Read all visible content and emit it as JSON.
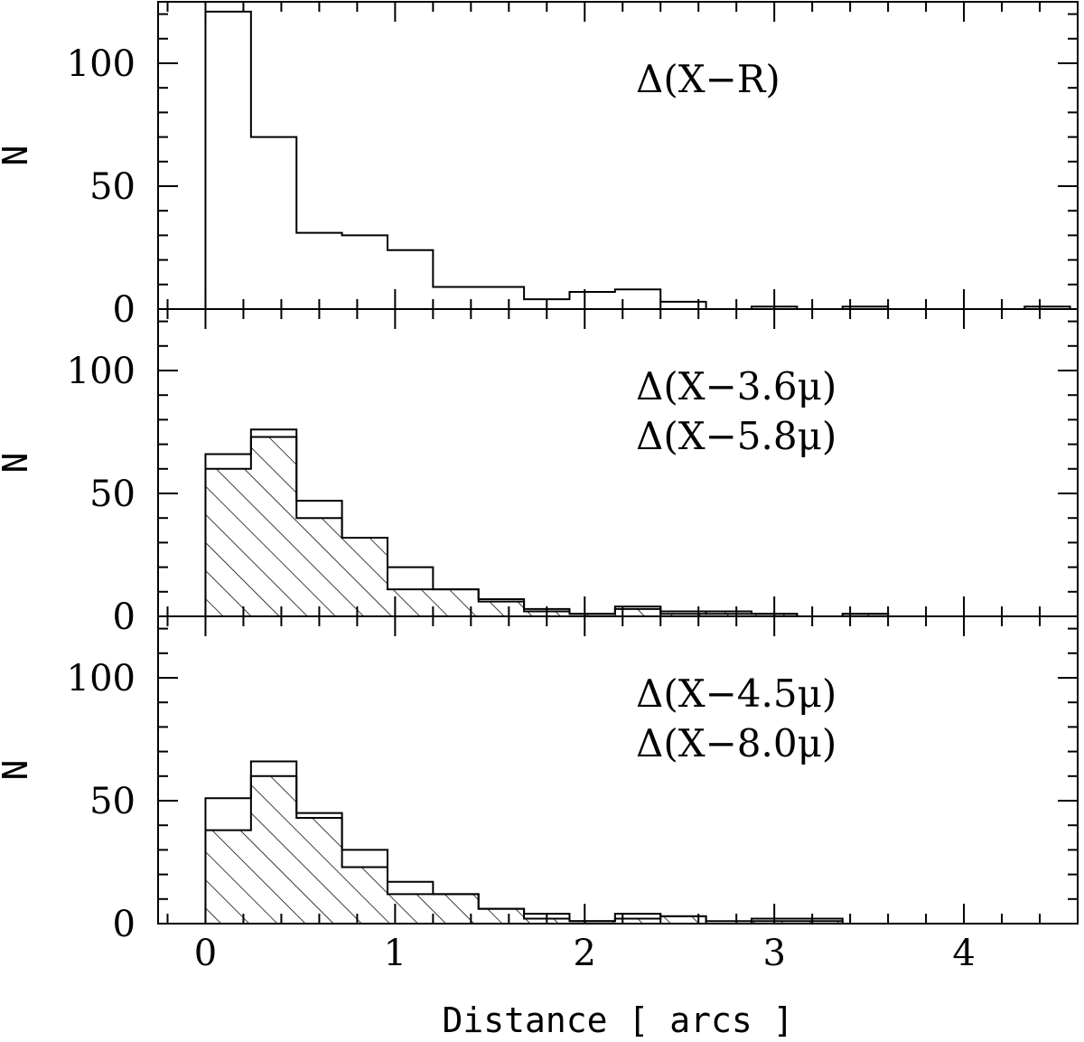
{
  "chart_data": {
    "type": "bar",
    "shared_x": {
      "xlabel": "Distance [ arcs ]",
      "xlim": [
        -0.25,
        4.6
      ],
      "x_ticks_major": [
        0,
        1,
        2,
        3,
        4
      ],
      "x_ticks_minor_step": 0.2,
      "bin_width": 0.24
    },
    "panels": [
      {
        "ylabel": "N",
        "ylim": [
          0,
          125
        ],
        "y_ticks_major": [
          0,
          50,
          100
        ],
        "y_ticks_minor_step": 10,
        "annotations": [
          "Δ(X−R)"
        ],
        "series": [
          {
            "style": "outline",
            "bins": [
              [
                0.0,
                121
              ],
              [
                0.24,
                70
              ],
              [
                0.48,
                31
              ],
              [
                0.72,
                30
              ],
              [
                0.96,
                24
              ],
              [
                1.2,
                9
              ],
              [
                1.44,
                9
              ],
              [
                1.68,
                4
              ],
              [
                1.92,
                7
              ],
              [
                2.16,
                8
              ],
              [
                2.4,
                3
              ],
              [
                2.64,
                0
              ],
              [
                2.88,
                1
              ],
              [
                3.12,
                0
              ],
              [
                3.36,
                1
              ],
              [
                3.6,
                0
              ],
              [
                3.84,
                0
              ],
              [
                4.08,
                0
              ],
              [
                4.32,
                1
              ]
            ]
          }
        ]
      },
      {
        "ylabel": "N",
        "ylim": [
          0,
          125
        ],
        "y_ticks_major": [
          0,
          50,
          100
        ],
        "y_ticks_minor_step": 10,
        "annotations": [
          "Δ(X−3.6μ)",
          "Δ(X−5.8μ)"
        ],
        "series": [
          {
            "style": "outline",
            "bins": [
              [
                0.0,
                66
              ],
              [
                0.24,
                76
              ],
              [
                0.48,
                47
              ],
              [
                0.72,
                32
              ],
              [
                0.96,
                20
              ],
              [
                1.2,
                11
              ],
              [
                1.44,
                7
              ],
              [
                1.68,
                3
              ],
              [
                1.92,
                1
              ],
              [
                2.16,
                4
              ],
              [
                2.4,
                2
              ],
              [
                2.64,
                1
              ],
              [
                2.88,
                1
              ],
              [
                3.12,
                0
              ],
              [
                3.36,
                1
              ]
            ]
          },
          {
            "style": "hatched",
            "bins": [
              [
                0.0,
                60
              ],
              [
                0.24,
                73
              ],
              [
                0.48,
                40
              ],
              [
                0.72,
                32
              ],
              [
                0.96,
                11
              ],
              [
                1.2,
                11
              ],
              [
                1.44,
                6
              ],
              [
                1.68,
                2
              ],
              [
                1.92,
                1
              ],
              [
                2.16,
                3
              ],
              [
                2.4,
                1
              ],
              [
                2.64,
                2
              ],
              [
                2.88,
                1
              ],
              [
                3.12,
                0
              ],
              [
                3.36,
                1
              ]
            ]
          }
        ]
      },
      {
        "ylabel": "N",
        "ylim": [
          0,
          125
        ],
        "y_ticks_major": [
          0,
          50,
          100
        ],
        "y_ticks_minor_step": 10,
        "annotations": [
          "Δ(X−4.5μ)",
          "Δ(X−8.0μ)"
        ],
        "series": [
          {
            "style": "outline",
            "bins": [
              [
                0.0,
                51
              ],
              [
                0.24,
                66
              ],
              [
                0.48,
                45
              ],
              [
                0.72,
                30
              ],
              [
                0.96,
                17
              ],
              [
                1.2,
                12
              ],
              [
                1.44,
                6
              ],
              [
                1.68,
                4
              ],
              [
                1.92,
                1
              ],
              [
                2.16,
                4
              ],
              [
                2.4,
                3
              ],
              [
                2.64,
                1
              ],
              [
                2.88,
                2
              ],
              [
                3.12,
                2
              ]
            ]
          },
          {
            "style": "hatched",
            "bins": [
              [
                0.0,
                38
              ],
              [
                0.24,
                60
              ],
              [
                0.48,
                43
              ],
              [
                0.72,
                23
              ],
              [
                0.96,
                12
              ],
              [
                1.2,
                12
              ],
              [
                1.44,
                6
              ],
              [
                1.68,
                2
              ],
              [
                1.92,
                1
              ],
              [
                2.16,
                2
              ],
              [
                2.4,
                3
              ],
              [
                2.64,
                0
              ],
              [
                2.88,
                1
              ],
              [
                3.12,
                1
              ]
            ]
          }
        ]
      }
    ]
  }
}
